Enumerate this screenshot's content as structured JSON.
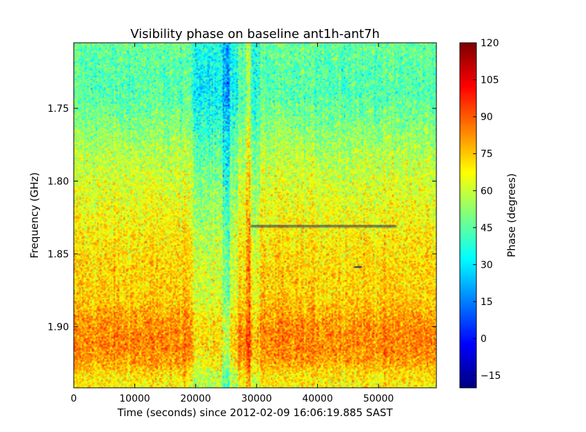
{
  "chart_data": {
    "type": "heatmap",
    "title": "Visibility phase on baseline ant1h-ant7h",
    "xlabel": "Time (seconds) since 2012-02-09 16:06:19.885 SAST",
    "ylabel": "Frequency (GHz)",
    "xlim": [
      0,
      59500
    ],
    "ylim": [
      1.705,
      1.942
    ],
    "y_inverted": true,
    "x_ticks": [
      0,
      10000,
      20000,
      30000,
      40000,
      50000
    ],
    "x_tick_labels": [
      "0",
      "10000",
      "20000",
      "30000",
      "40000",
      "50000"
    ],
    "y_ticks": [
      1.75,
      1.8,
      1.85,
      1.9
    ],
    "y_tick_labels": [
      "1.75",
      "1.80",
      "1.85",
      "1.90"
    ],
    "grid": false,
    "colorbar": {
      "label": "Phase (degrees)",
      "colormap": "jet",
      "range": [
        -20,
        120
      ],
      "ticks": [
        -15,
        0,
        15,
        30,
        45,
        60,
        75,
        90,
        105,
        120
      ],
      "tick_labels": [
        "−15",
        "0",
        "15",
        "30",
        "45",
        "60",
        "75",
        "90",
        "105",
        "120"
      ]
    },
    "frequency_profile": {
      "frequency_ghz": [
        1.705,
        1.72,
        1.74,
        1.76,
        1.78,
        1.8,
        1.82,
        1.84,
        1.86,
        1.88,
        1.895,
        1.905,
        1.915,
        1.925,
        1.932,
        1.942
      ],
      "mean_phase_deg": [
        47,
        45,
        44,
        50,
        57,
        62,
        66,
        70,
        73,
        74,
        81,
        84,
        84,
        80,
        72,
        68
      ]
    },
    "time_features": [
      {
        "time_s": [
          19500,
          27000
        ],
        "phase_offset_deg": -13
      },
      {
        "time_s": [
          24500,
          25600
        ],
        "phase_offset_deg": -18
      },
      {
        "time_s": [
          28300,
          29000
        ],
        "phase_offset_deg": 14
      },
      {
        "time_s": [
          29200,
          30500
        ],
        "phase_offset_deg": -10
      }
    ],
    "artifacts": [
      {
        "time_s": [
          29000,
          53000
        ],
        "frequency_ghz": 1.831
      },
      {
        "time_s": [
          46000,
          47300
        ],
        "frequency_ghz": 1.859
      }
    ]
  }
}
